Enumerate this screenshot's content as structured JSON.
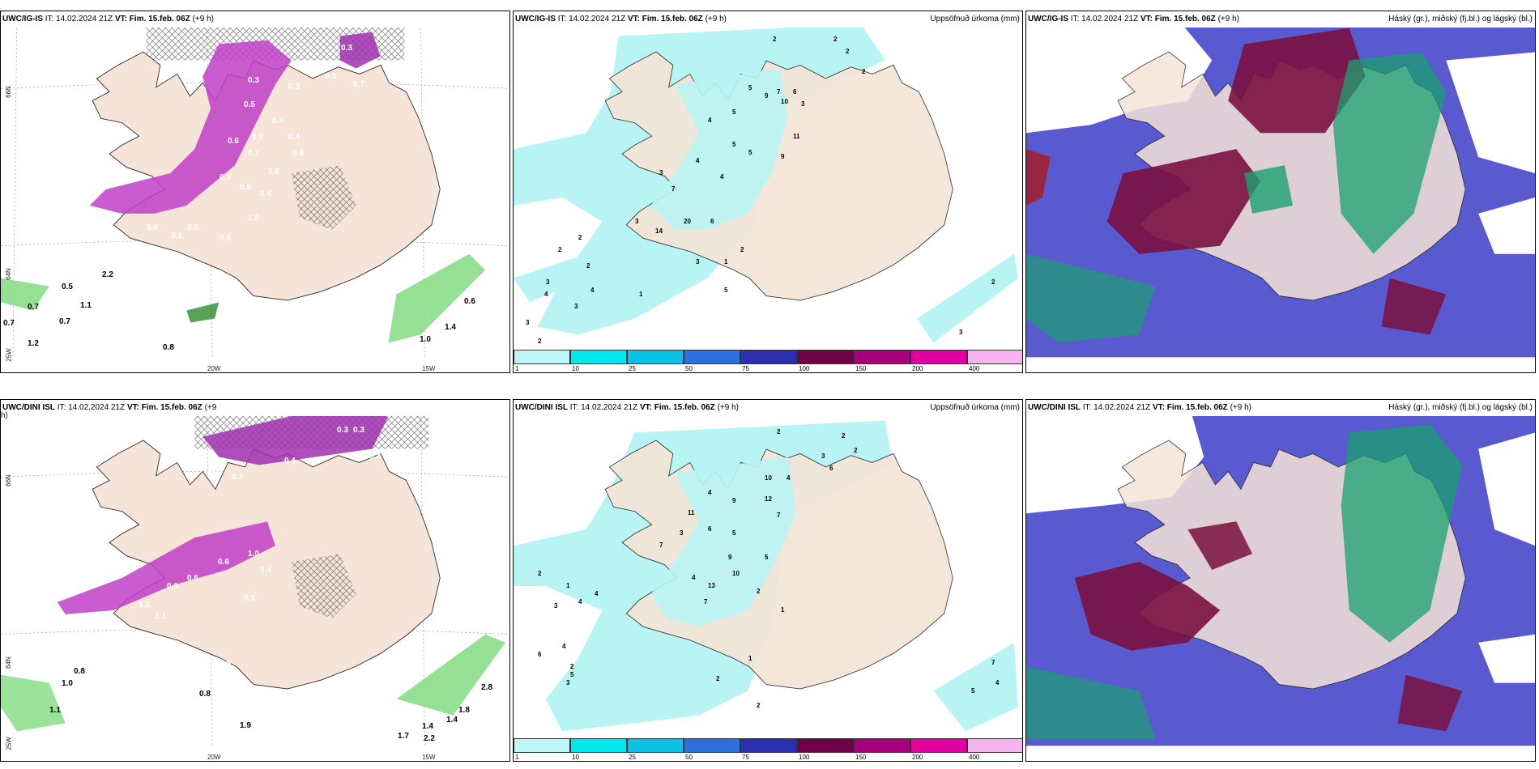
{
  "panels": {
    "p1": {
      "model": "UWC/IG-IS",
      "it_label": "IT:",
      "it": "14.02.2024 21Z",
      "vt_label": "VT:",
      "vt": "Fim. 15.feb. 06Z",
      "lead": "(+9 h)",
      "right": ""
    },
    "p2": {
      "model": "UWC/IG-IS",
      "it_label": "IT:",
      "it": "14.02.2024 21Z",
      "vt_label": "VT:",
      "vt": "Fim. 15.feb. 06Z",
      "lead": "(+9 h)",
      "right": "Uppsöfnuð úrkoma (mm)"
    },
    "p3": {
      "model": "UWC/IG-IS",
      "it_label": "IT:",
      "it": "14.02.2024 21Z",
      "vt_label": "VT:",
      "vt": "Fim. 15.feb. 06Z",
      "lead": "(+9 h)",
      "right": "Háský (gr.), miðský (fj.bl.) og lágský (bl.)"
    },
    "p4": {
      "model": "UWC/DINI ISL",
      "it_label": "IT:",
      "it": "14.02.2024 21Z",
      "vt_label": "VT:",
      "vt": "Fim. 15.feb. 06Z",
      "lead": "(+9",
      "right": ""
    },
    "p5": {
      "model": "UWC/DINI ISL",
      "it_label": "IT:",
      "it": "14.02.2024 21Z",
      "vt_label": "VT:",
      "vt": "Fim. 15.feb. 06Z",
      "lead": "(+9 h)",
      "right": "Uppsöfnuð úrkoma (mm)"
    },
    "p6": {
      "model": "UWC/DINI ISL",
      "it_label": "IT:",
      "it": "14.02.2024 21Z",
      "vt_label": "VT:",
      "vt": "Fim. 15.feb. 06Z",
      "lead": "(+9 h)",
      "right": "Háský (gr.), miðský (fj.bl.) og lágský (bl.)"
    }
  },
  "axis": {
    "lat66": "66N",
    "lat64": "64N",
    "lon20": "20W",
    "lon15": "15W",
    "lon25": "25W",
    "p4_wrap": "h)"
  },
  "legend": {
    "ticks": [
      "1",
      "10",
      "25",
      "50",
      "75",
      "100",
      "150",
      "200",
      "400"
    ],
    "colors": [
      "#bff5f5",
      "#00e8ec",
      "#0cc0e8",
      "#2e6fe0",
      "#2a2fb0",
      "#6e0046",
      "#a8007a",
      "#e000a0",
      "#f6b4f0"
    ]
  },
  "labels": {
    "p1_pink": [
      "0.3",
      "0.3",
      "0.3",
      "0.5",
      "0.4",
      "0.5",
      "0.6",
      "0.4",
      "0.7",
      "0.6",
      "1.6",
      "0.3",
      "0.5",
      "0.4",
      "1.9",
      "0.6",
      "2.8",
      "3.1",
      "2.9",
      "0.5",
      "1.4",
      "0.6",
      "0.7",
      "0.3"
    ],
    "p1_green": [
      "0.5",
      "0.7",
      "1.1",
      "0.7",
      "1.2",
      "0.8",
      "0.6",
      "1.4",
      "1.0",
      "2.2",
      "0.7"
    ],
    "p2_num": [
      "2",
      "2",
      "2",
      "2",
      "5",
      "9",
      "10",
      "3",
      "6",
      "7",
      "4",
      "5",
      "11",
      "5",
      "4",
      "5",
      "9",
      "3",
      "4",
      "7",
      "20",
      "14",
      "3",
      "2",
      "6",
      "1",
      "2",
      "3",
      "2",
      "4",
      "3",
      "2",
      "3",
      "1",
      "2",
      "5",
      "3",
      "3",
      "4",
      "2"
    ],
    "p4_pink": [
      "0.3",
      "0.3",
      "0.3",
      "0.4",
      "0.3",
      "0.4",
      "1.0",
      "0.6",
      "0.6",
      "0.9",
      "1.2",
      "1.1",
      "1.5",
      "0.4",
      "0.3",
      "0.5"
    ],
    "p4_green": [
      "1.0",
      "0.8",
      "1.1",
      "0.8",
      "1.9",
      "1.7",
      "1.4",
      "2.2",
      "1.4",
      "1.8",
      "2.8"
    ],
    "p5_num": [
      "2",
      "2",
      "2",
      "3",
      "6",
      "10",
      "4",
      "12",
      "7",
      "9",
      "4",
      "11",
      "5",
      "6",
      "3",
      "7",
      "9",
      "5",
      "4",
      "10",
      "13",
      "2",
      "1",
      "7",
      "4",
      "3",
      "2",
      "1",
      "4",
      "4",
      "2",
      "5",
      "3",
      "2",
      "7",
      "2",
      "4",
      "5",
      "6",
      "1"
    ]
  },
  "colors": {
    "land": "#f5e4d7",
    "lightcyan": "#b8f4f4",
    "cloud_high": "#7a1040",
    "cloud_mid": "#5a5ad0",
    "cloud_low": "#1aa070",
    "pink": "#c040c8",
    "green": "#7ad87a"
  }
}
